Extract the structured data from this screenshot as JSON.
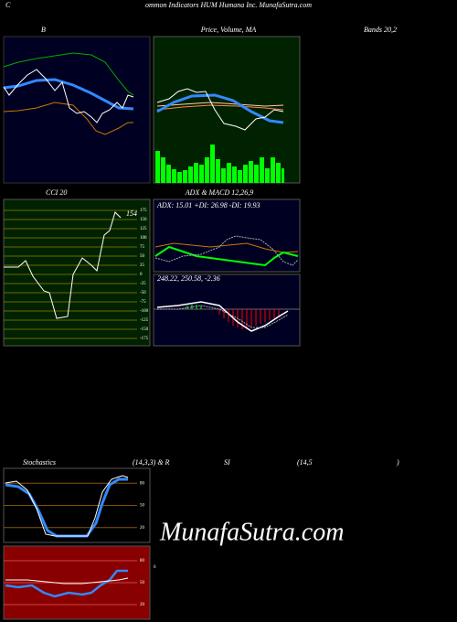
{
  "header": {
    "left": "C",
    "title": "ommon Indicators HUM Humana Inc. MunafaSutra.com"
  },
  "bollinger": {
    "title": "B"
  },
  "price": {
    "title": "Price, Volume, MA"
  },
  "bands": {
    "title": "Bands 20,2"
  },
  "cci": {
    "title": "CCI 20",
    "last": "154",
    "ticks": [
      175,
      150,
      125,
      100,
      75,
      50,
      25,
      0,
      -25,
      -50,
      -75,
      -100,
      -125,
      -150,
      -175
    ]
  },
  "adx_macd": {
    "title": "ADX & MACD 12,26,9",
    "adx": "ADX: 15.01 +DI: 26.98 -DI: 19.93",
    "macd": "248.22, 250.58, -2.36"
  },
  "stochastics": {
    "title": "Stochastics",
    "params": "(14,3,3) & R",
    "ticks": [
      80,
      50,
      20
    ]
  },
  "rsi": {
    "title": "SI",
    "params": "(14,5",
    "close": ")",
    "ticks": [
      80,
      50,
      20
    ],
    "side": "6"
  },
  "watermark": "MunafaSutra.com"
}
